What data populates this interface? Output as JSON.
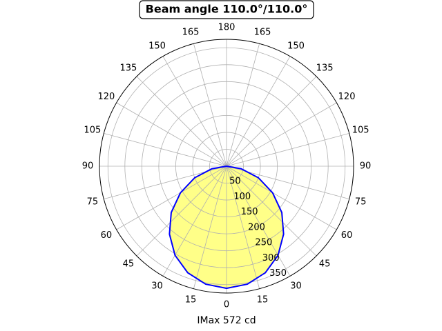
{
  "chart_data": {
    "type": "polar",
    "title": "Beam angle 110.0°/110.0°",
    "xlabel": "IMax 572 cd",
    "theta": [
      -90,
      -80,
      -70,
      -60,
      -50,
      -40,
      -30,
      -20,
      -10,
      0,
      10,
      20,
      30,
      40,
      50,
      60,
      70,
      80,
      90
    ],
    "values": [
      0,
      44,
      100,
      157,
      213,
      262,
      304,
      335,
      354,
      361,
      354,
      335,
      304,
      262,
      213,
      157,
      100,
      44,
      0
    ],
    "color": "#0000ff",
    "fill_color": "#ffff88",
    "rlim": [
      0,
      375
    ],
    "rticks": [
      50,
      100,
      150,
      200,
      250,
      300,
      350
    ],
    "thetaticks": [
      0,
      15,
      30,
      45,
      60,
      75,
      90,
      105,
      120,
      135,
      150,
      165,
      180,
      {
        "value": 195,
        "label": "165"
      },
      {
        "value": 210,
        "label": "150"
      },
      {
        "value": 225,
        "label": "135"
      },
      {
        "value": 240,
        "label": "120"
      },
      {
        "value": 255,
        "label": "105"
      },
      {
        "value": 270,
        "label": "90"
      },
      {
        "value": 285,
        "label": "75"
      },
      {
        "value": 300,
        "label": "60"
      },
      {
        "value": 315,
        "label": "45"
      },
      {
        "value": 330,
        "label": "30"
      },
      {
        "value": 345,
        "label": "15"
      }
    ],
    "grid": true
  }
}
